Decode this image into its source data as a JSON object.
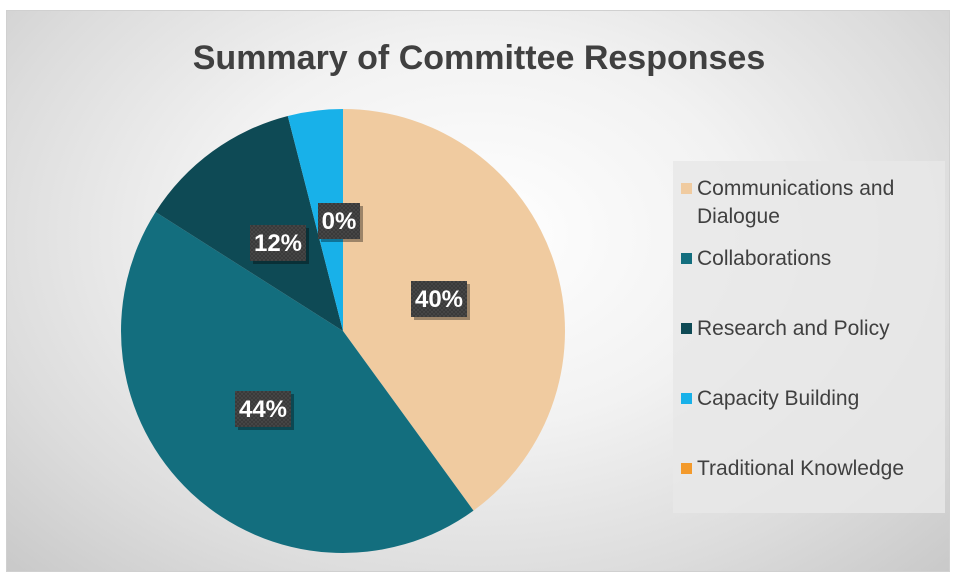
{
  "chart_data": {
    "type": "pie",
    "title": "Summary of Committee Responses",
    "categories": [
      "Communications and Dialogue",
      "Collaborations",
      "Research and Policy",
      "Capacity Building",
      "Traditional Knowledge"
    ],
    "values": [
      40,
      44,
      12,
      4,
      0
    ],
    "data_labels": [
      "40%",
      "44%",
      "12%",
      "",
      "0%"
    ],
    "colors": [
      "#F0CBA0",
      "#136E7E",
      "#0E4A55",
      "#18B1E9",
      "#F39A2C"
    ],
    "start_angle_deg": 0,
    "direction": "clockwise",
    "legend_position": "right"
  }
}
